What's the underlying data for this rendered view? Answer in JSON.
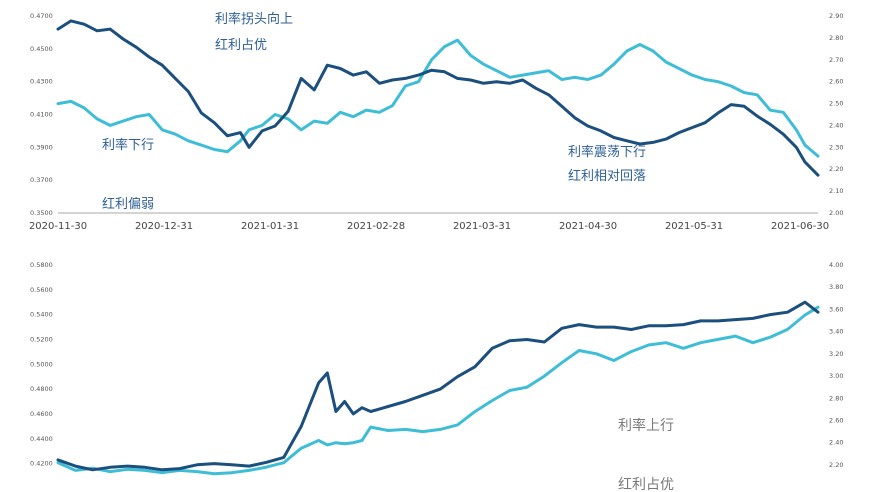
{
  "colors": {
    "dark_series": "#1b4f7e",
    "light_series": "#3ebdd6",
    "axis": "#aaaaaa"
  },
  "chart_data": [
    {
      "type": "line",
      "x_tick_labels": [
        "2020-11-30",
        "2020-12-31",
        "2021-01-31",
        "2021-02-28",
        "2021-03-31",
        "2021-04-30",
        "2021-05-31",
        "2021-06-30"
      ],
      "y_left_ticks": [
        "0.4700",
        "0.4500",
        "0.4300",
        "0.4100",
        "0.3900",
        "0.3700",
        "0.3500"
      ],
      "y_left_range": [
        0.35,
        0.47
      ],
      "y_right_ticks": [
        "2.90",
        "2.80",
        "2.70",
        "2.60",
        "2.50",
        "2.40",
        "2.30",
        "2.20",
        "2.10",
        "2.00"
      ],
      "y_right_range": [
        2.0,
        2.9
      ],
      "x_range": [
        0,
        175
      ],
      "series": [
        {
          "axis": "left",
          "color": "#1b4f7e",
          "x": [
            0,
            3,
            6,
            9,
            12,
            15,
            18,
            21,
            24,
            27,
            30,
            33,
            36,
            39,
            42,
            44,
            47,
            50,
            53,
            56,
            59,
            62,
            65,
            68,
            71,
            74,
            77,
            80,
            83,
            86,
            89,
            92,
            95,
            98,
            101,
            104,
            107,
            110,
            113,
            116,
            119,
            122,
            125,
            128,
            131,
            134,
            137,
            140,
            143,
            146,
            149,
            152,
            155,
            158,
            161,
            164,
            167,
            170,
            172,
            175
          ],
          "y": [
            0.462,
            0.467,
            0.465,
            0.461,
            0.462,
            0.456,
            0.451,
            0.445,
            0.44,
            0.432,
            0.424,
            0.411,
            0.405,
            0.397,
            0.399,
            0.39,
            0.4,
            0.403,
            0.412,
            0.432,
            0.425,
            0.44,
            0.438,
            0.434,
            0.436,
            0.429,
            0.431,
            0.432,
            0.434,
            0.437,
            0.436,
            0.432,
            0.431,
            0.429,
            0.43,
            0.429,
            0.431,
            0.426,
            0.422,
            0.415,
            0.408,
            0.403,
            0.4,
            0.396,
            0.394,
            0.392,
            0.393,
            0.395,
            0.399,
            0.402,
            0.405,
            0.411,
            0.416,
            0.415,
            0.409,
            0.404,
            0.398,
            0.39,
            0.381,
            0.373
          ]
        },
        {
          "axis": "right",
          "color": "#3ebdd6",
          "x": [
            0,
            3,
            6,
            9,
            12,
            15,
            18,
            21,
            24,
            27,
            30,
            33,
            36,
            39,
            42,
            44,
            47,
            50,
            53,
            56,
            59,
            62,
            65,
            68,
            71,
            74,
            77,
            80,
            83,
            86,
            89,
            92,
            95,
            98,
            101,
            104,
            107,
            110,
            113,
            116,
            119,
            122,
            125,
            128,
            131,
            134,
            137,
            140,
            143,
            146,
            149,
            152,
            155,
            158,
            161,
            164,
            167,
            170,
            172,
            175
          ],
          "y": [
            2.5,
            2.51,
            2.48,
            2.43,
            2.4,
            2.42,
            2.44,
            2.45,
            2.38,
            2.36,
            2.33,
            2.31,
            2.29,
            2.28,
            2.33,
            2.38,
            2.4,
            2.45,
            2.43,
            2.38,
            2.42,
            2.41,
            2.46,
            2.44,
            2.47,
            2.46,
            2.49,
            2.58,
            2.6,
            2.7,
            2.76,
            2.79,
            2.72,
            2.68,
            2.65,
            2.62,
            2.63,
            2.64,
            2.65,
            2.61,
            2.62,
            2.61,
            2.63,
            2.68,
            2.74,
            2.77,
            2.74,
            2.69,
            2.66,
            2.63,
            2.61,
            2.6,
            2.58,
            2.55,
            2.54,
            2.47,
            2.46,
            2.38,
            2.31,
            2.26
          ]
        }
      ],
      "annotations": [
        "利率拐头向上",
        "红利占优",
        "利率下行",
        "红利偏弱",
        "利率震荡下行",
        "红利相对回落"
      ]
    },
    {
      "type": "line",
      "y_left_ticks": [
        "0.5800",
        "0.5600",
        "0.5400",
        "0.5200",
        "0.5000",
        "0.4800",
        "0.4600",
        "0.4400",
        "0.4200"
      ],
      "y_left_range": [
        0.41,
        0.58
      ],
      "y_right_ticks": [
        "4.00",
        "3.80",
        "3.60",
        "3.40",
        "3.20",
        "3.00",
        "2.80",
        "2.60",
        "2.40",
        "2.20"
      ],
      "y_right_range": [
        2.1,
        4.0
      ],
      "x_range": [
        0,
        175
      ],
      "series": [
        {
          "axis": "left",
          "color": "#1b4f7e",
          "x": [
            0,
            4,
            8,
            12,
            16,
            20,
            24,
            28,
            32,
            36,
            40,
            44,
            48,
            52,
            56,
            60,
            62,
            64,
            66,
            68,
            70,
            72,
            76,
            80,
            84,
            88,
            92,
            96,
            100,
            104,
            108,
            112,
            116,
            120,
            124,
            128,
            132,
            136,
            140,
            144,
            148,
            152,
            156,
            160,
            164,
            168,
            172,
            175
          ],
          "y": [
            0.423,
            0.418,
            0.415,
            0.417,
            0.418,
            0.417,
            0.415,
            0.416,
            0.419,
            0.42,
            0.419,
            0.418,
            0.421,
            0.425,
            0.45,
            0.485,
            0.493,
            0.462,
            0.47,
            0.46,
            0.465,
            0.462,
            0.466,
            0.47,
            0.475,
            0.48,
            0.49,
            0.498,
            0.513,
            0.519,
            0.52,
            0.518,
            0.529,
            0.532,
            0.53,
            0.53,
            0.528,
            0.531,
            0.531,
            0.532,
            0.535,
            0.535,
            0.536,
            0.537,
            0.54,
            0.542,
            0.55,
            0.542
          ]
        },
        {
          "axis": "right",
          "color": "#3ebdd6",
          "x": [
            0,
            4,
            8,
            12,
            16,
            20,
            24,
            28,
            32,
            36,
            40,
            44,
            48,
            52,
            56,
            60,
            62,
            64,
            66,
            68,
            70,
            72,
            76,
            80,
            84,
            88,
            92,
            96,
            100,
            104,
            108,
            112,
            116,
            120,
            124,
            128,
            132,
            136,
            140,
            144,
            148,
            152,
            156,
            160,
            164,
            168,
            172,
            175
          ],
          "y": [
            2.22,
            2.15,
            2.17,
            2.14,
            2.16,
            2.15,
            2.13,
            2.15,
            2.14,
            2.12,
            2.13,
            2.15,
            2.18,
            2.22,
            2.35,
            2.42,
            2.38,
            2.4,
            2.39,
            2.4,
            2.42,
            2.54,
            2.51,
            2.52,
            2.5,
            2.52,
            2.56,
            2.68,
            2.78,
            2.87,
            2.9,
            3.0,
            3.12,
            3.23,
            3.2,
            3.14,
            3.22,
            3.28,
            3.3,
            3.25,
            3.3,
            3.33,
            3.36,
            3.3,
            3.35,
            3.42,
            3.55,
            3.62
          ]
        }
      ],
      "annotations": [
        "利率上行",
        "红利占优"
      ]
    }
  ]
}
